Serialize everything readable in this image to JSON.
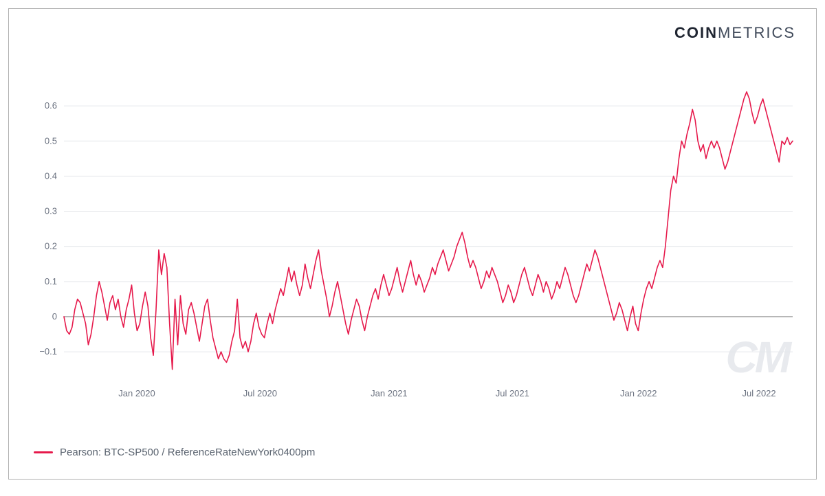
{
  "brand": {
    "part1": "COIN",
    "part2": "METRICS"
  },
  "watermark": "CM",
  "chart": {
    "type": "line",
    "line_color": "#e6194b",
    "line_width": 1.6,
    "background_color": "#ffffff",
    "grid_color": "#e5e7eb",
    "zero_line_color": "#888888",
    "axis_label_color": "#6b7280",
    "axis_label_fontsize": 13,
    "y": {
      "min": -0.18,
      "max": 0.7,
      "ticks": [
        -0.1,
        0,
        0.1,
        0.2,
        0.3,
        0.4,
        0.5,
        0.6
      ],
      "tick_labels": [
        "−0.1",
        "0",
        "0.1",
        "0.2",
        "0.3",
        "0.4",
        "0.5",
        "0.6"
      ]
    },
    "x": {
      "min": 0,
      "max": 260,
      "ticks": [
        26,
        70,
        116,
        160,
        205,
        248
      ],
      "tick_labels": [
        "Jan 2020",
        "Jul 2020",
        "Jan 2021",
        "Jul 2021",
        "Jan 2022",
        "Jul 2022"
      ]
    },
    "series": [
      0.0,
      -0.04,
      -0.05,
      -0.03,
      0.02,
      0.05,
      0.04,
      0.01,
      -0.02,
      -0.08,
      -0.05,
      0.0,
      0.06,
      0.1,
      0.07,
      0.03,
      -0.01,
      0.04,
      0.06,
      0.02,
      0.05,
      0.0,
      -0.03,
      0.02,
      0.05,
      0.09,
      0.01,
      -0.04,
      -0.02,
      0.03,
      0.07,
      0.03,
      -0.06,
      -0.11,
      0.02,
      0.19,
      0.12,
      0.18,
      0.14,
      -0.02,
      -0.15,
      0.05,
      -0.08,
      0.06,
      -0.02,
      -0.05,
      0.02,
      0.04,
      0.01,
      -0.03,
      -0.07,
      -0.02,
      0.03,
      0.05,
      -0.01,
      -0.06,
      -0.09,
      -0.12,
      -0.1,
      -0.12,
      -0.13,
      -0.11,
      -0.07,
      -0.04,
      0.05,
      -0.06,
      -0.09,
      -0.07,
      -0.1,
      -0.07,
      -0.02,
      0.01,
      -0.03,
      -0.05,
      -0.06,
      -0.02,
      0.01,
      -0.02,
      0.02,
      0.05,
      0.08,
      0.06,
      0.1,
      0.14,
      0.1,
      0.13,
      0.09,
      0.06,
      0.09,
      0.15,
      0.11,
      0.08,
      0.12,
      0.16,
      0.19,
      0.13,
      0.09,
      0.05,
      0.0,
      0.03,
      0.07,
      0.1,
      0.06,
      0.02,
      -0.02,
      -0.05,
      -0.01,
      0.02,
      0.05,
      0.03,
      -0.01,
      -0.04,
      0.0,
      0.03,
      0.06,
      0.08,
      0.05,
      0.09,
      0.12,
      0.09,
      0.06,
      0.08,
      0.11,
      0.14,
      0.1,
      0.07,
      0.1,
      0.13,
      0.16,
      0.12,
      0.09,
      0.12,
      0.1,
      0.07,
      0.09,
      0.11,
      0.14,
      0.12,
      0.15,
      0.17,
      0.19,
      0.16,
      0.13,
      0.15,
      0.17,
      0.2,
      0.22,
      0.24,
      0.21,
      0.17,
      0.14,
      0.16,
      0.14,
      0.11,
      0.08,
      0.1,
      0.13,
      0.11,
      0.14,
      0.12,
      0.1,
      0.07,
      0.04,
      0.06,
      0.09,
      0.07,
      0.04,
      0.06,
      0.09,
      0.12,
      0.14,
      0.11,
      0.08,
      0.06,
      0.09,
      0.12,
      0.1,
      0.07,
      0.1,
      0.08,
      0.05,
      0.07,
      0.1,
      0.08,
      0.11,
      0.14,
      0.12,
      0.09,
      0.06,
      0.04,
      0.06,
      0.09,
      0.12,
      0.15,
      0.13,
      0.16,
      0.19,
      0.17,
      0.14,
      0.11,
      0.08,
      0.05,
      0.02,
      -0.01,
      0.01,
      0.04,
      0.02,
      -0.01,
      -0.04,
      0.0,
      0.03,
      -0.02,
      -0.04,
      0.01,
      0.05,
      0.08,
      0.1,
      0.08,
      0.11,
      0.14,
      0.16,
      0.14,
      0.2,
      0.28,
      0.36,
      0.4,
      0.38,
      0.45,
      0.5,
      0.48,
      0.52,
      0.55,
      0.59,
      0.56,
      0.5,
      0.47,
      0.49,
      0.45,
      0.48,
      0.5,
      0.48,
      0.5,
      0.48,
      0.45,
      0.42,
      0.44,
      0.47,
      0.5,
      0.53,
      0.56,
      0.59,
      0.62,
      0.64,
      0.62,
      0.58,
      0.55,
      0.57,
      0.6,
      0.62,
      0.59,
      0.56,
      0.53,
      0.5,
      0.47,
      0.44,
      0.5,
      0.49,
      0.51,
      0.49,
      0.5
    ]
  },
  "legend": {
    "swatch_color": "#e6194b",
    "label": "Pearson: BTC-SP500 / ReferenceRateNewYork0400pm"
  }
}
